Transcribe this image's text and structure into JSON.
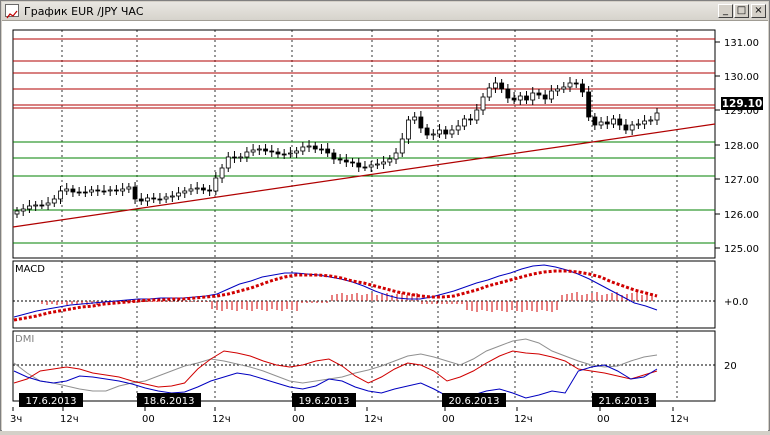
{
  "window": {
    "title": "График EUR /JPY  ЧАС",
    "buttons": {
      "minimize": "_",
      "maximize": "□",
      "close": "×"
    }
  },
  "price_panel": {
    "y_ticks": [
      "131.00",
      "130.00",
      "129.00",
      "128.00",
      "127.00",
      "126.00",
      "125.00"
    ],
    "current_price": "129.10"
  },
  "macd_panel": {
    "label": "MACD",
    "zero_label": "+0.0"
  },
  "dmi_panel": {
    "label": "DMI",
    "level_label": "20"
  },
  "time_axis": {
    "dates": [
      "17.6.2013",
      "18.6.2013",
      "19.6.2013",
      "20.6.2013",
      "21.6.2013"
    ],
    "ticks": [
      "3ч",
      "12ч",
      "00",
      "12ч",
      "00",
      "12ч",
      "00",
      "12ч",
      "00",
      "12ч"
    ]
  },
  "colors": {
    "candle": "#000000",
    "resistance": "#b00000",
    "support": "#008000",
    "trendline": "#b00000",
    "macd_line": "#0000c0",
    "macd_signal": "#d00000",
    "macd_hist": "#d00000",
    "dmi_plus": "#0000c0",
    "dmi_minus": "#d00000",
    "adx": "#808080"
  }
}
